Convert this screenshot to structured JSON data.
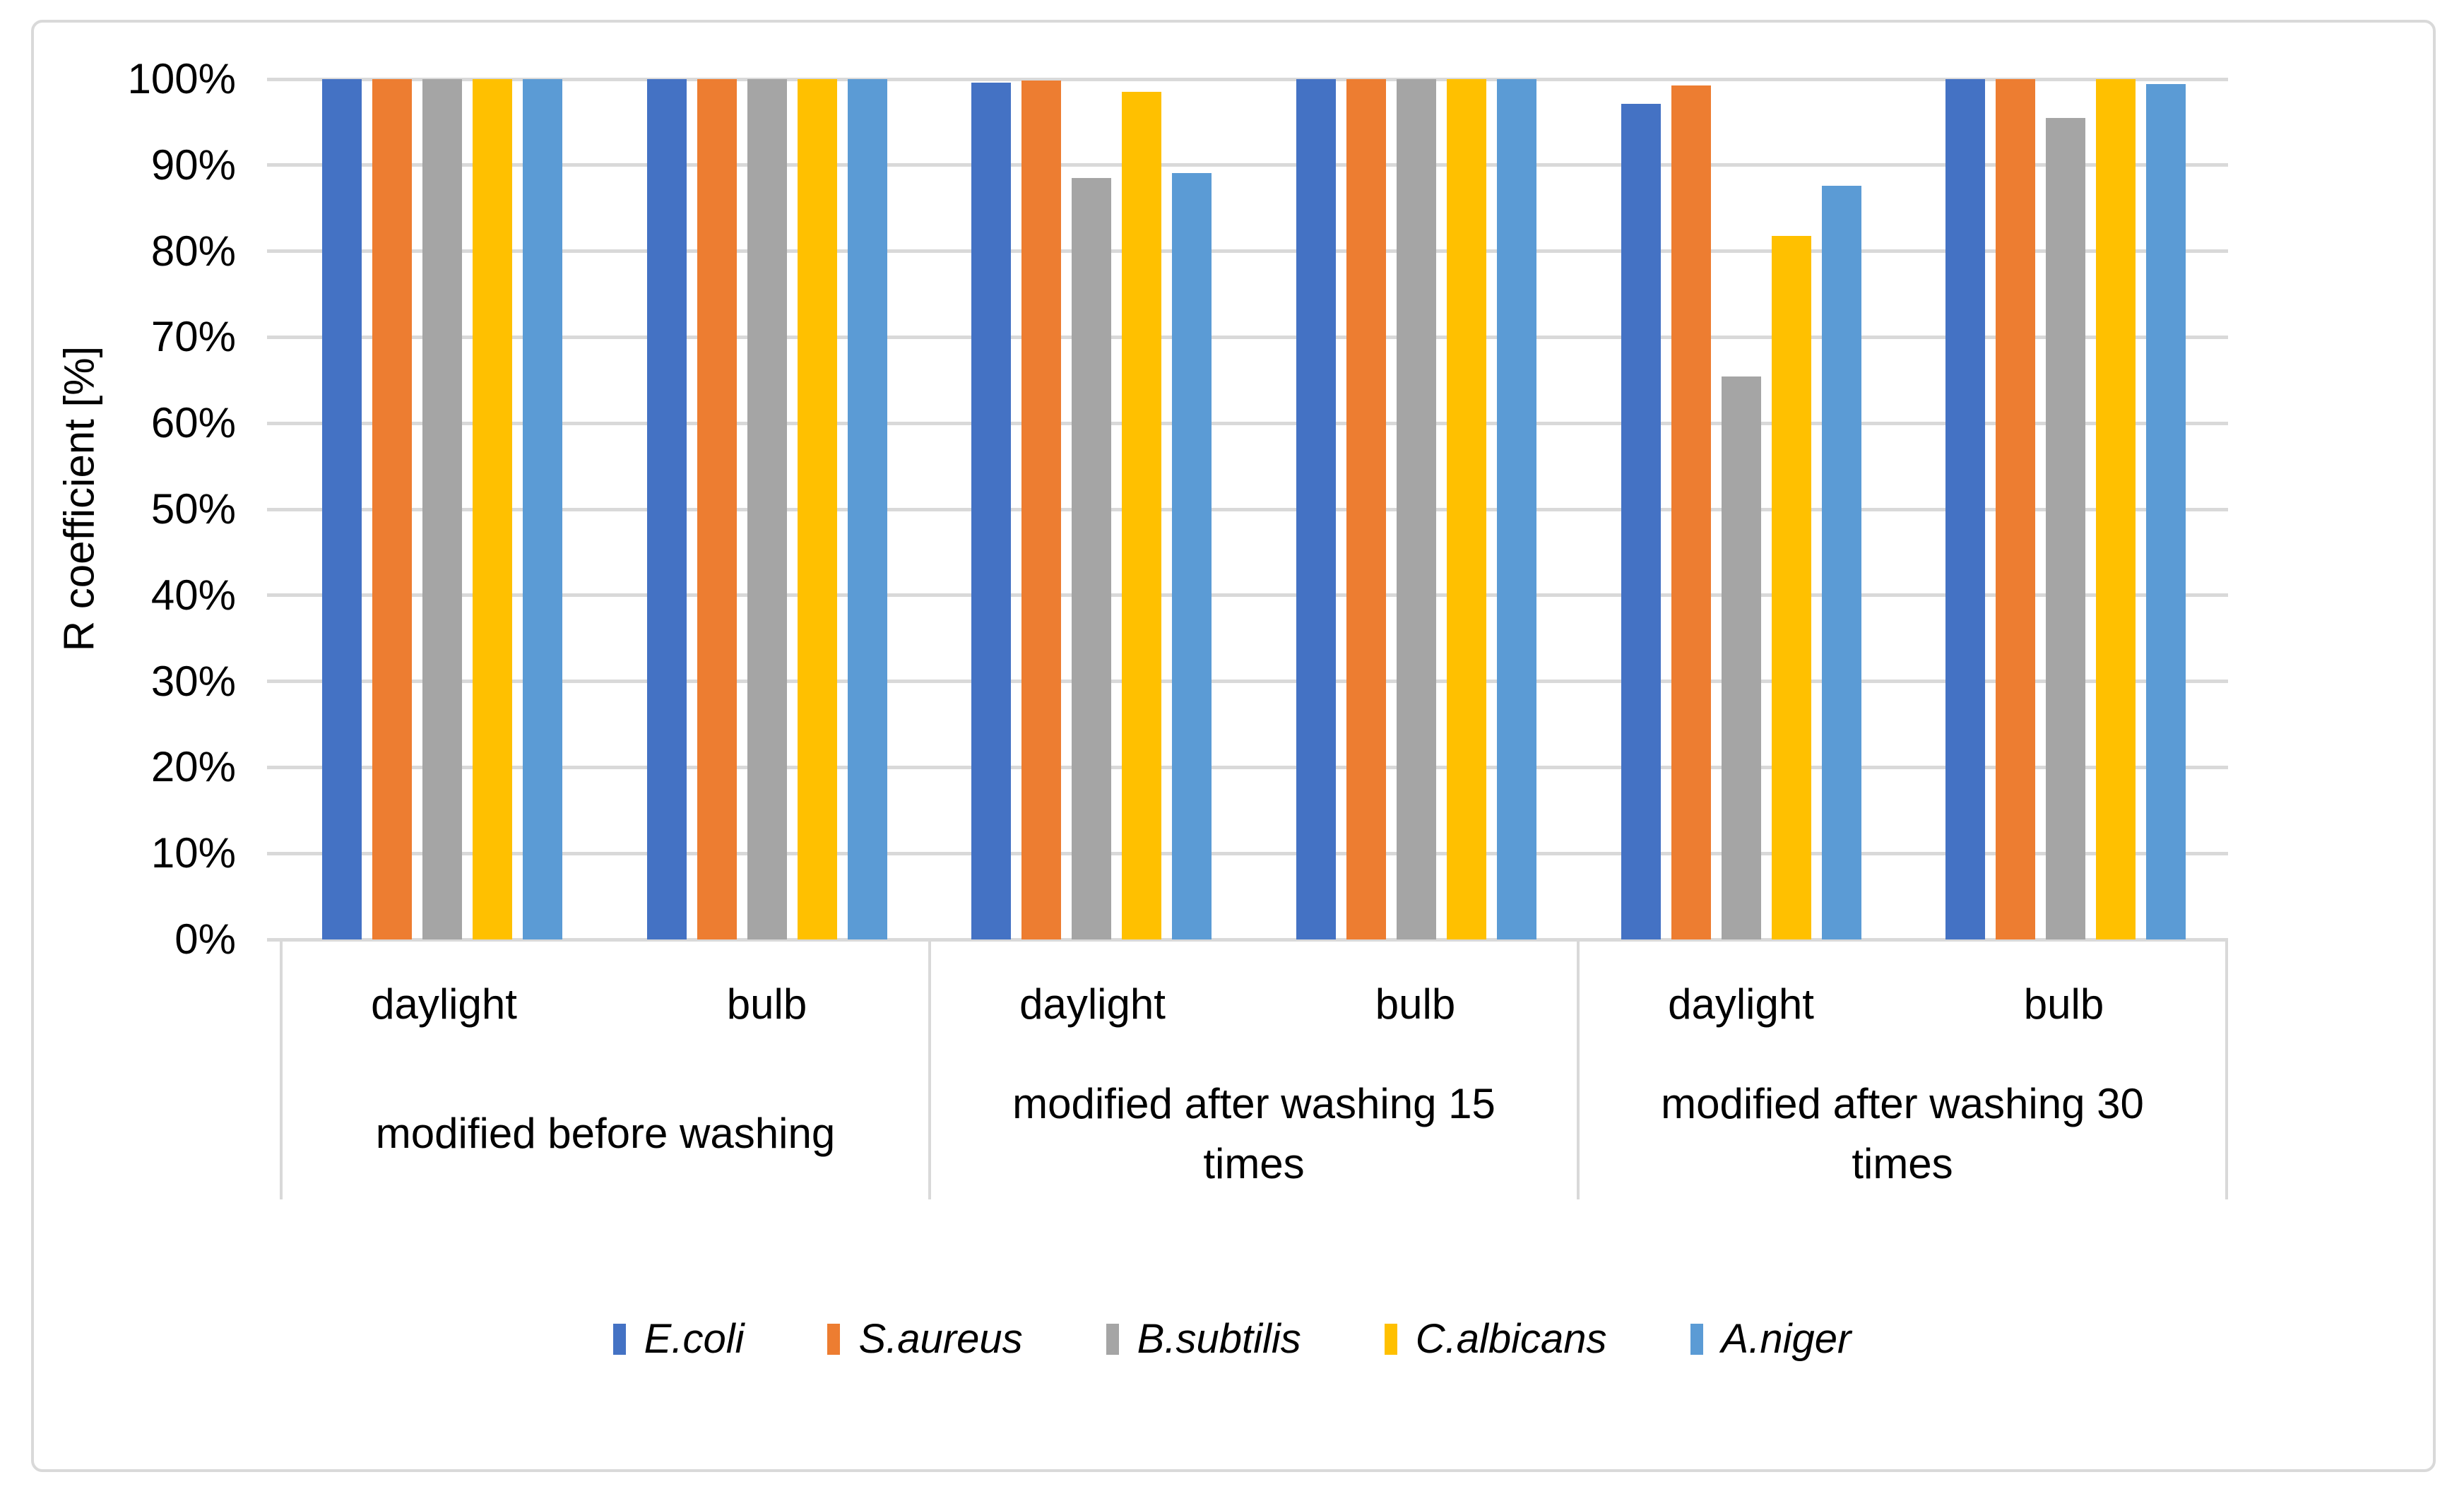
{
  "chart_data": {
    "type": "bar",
    "ylabel": "R coefficient [%]",
    "y_axis": {
      "min": 0,
      "max": 100,
      "step": 10,
      "unit": "%",
      "tick_labels": [
        "0%",
        "10%",
        "20%",
        "30%",
        "40%",
        "50%",
        "60%",
        "70%",
        "80%",
        "90%",
        "100%"
      ]
    },
    "grid": true,
    "gridline_color": "#d9d9d9",
    "legend_position": "bottom",
    "background": "#ffffff",
    "groups": [
      {
        "label": "modified before washing",
        "sublabels": [
          "daylight",
          "bulb"
        ]
      },
      {
        "label": "modified after washing 15 times",
        "sublabels": [
          "daylight",
          "bulb"
        ]
      },
      {
        "label": "modified after washing 30 times",
        "sublabels": [
          "daylight",
          "bulb"
        ]
      }
    ],
    "categories": [
      "modified before washing / daylight",
      "modified before washing / bulb",
      "modified after washing 15 times / daylight",
      "modified after washing 15 times / bulb",
      "modified after washing 30 times / daylight",
      "modified after washing 30 times / bulb"
    ],
    "series": [
      {
        "name": "E.coli",
        "color": "#4472c4",
        "values": [
          100,
          100,
          99.6,
          100,
          97.1,
          100
        ]
      },
      {
        "name": "S.aureus",
        "color": "#ed7d31",
        "values": [
          100,
          100,
          99.8,
          100,
          99.3,
          100
        ]
      },
      {
        "name": "B.subtilis",
        "color": "#a5a5a5",
        "values": [
          100,
          100,
          88.5,
          100,
          65.4,
          95.5
        ]
      },
      {
        "name": "C.albicans",
        "color": "#ffc000",
        "values": [
          100,
          100,
          98.5,
          100,
          81.8,
          100
        ]
      },
      {
        "name": "A.niger",
        "color": "#5b9bd5",
        "values": [
          100,
          100,
          89.1,
          100,
          87.6,
          99.4
        ]
      }
    ]
  }
}
